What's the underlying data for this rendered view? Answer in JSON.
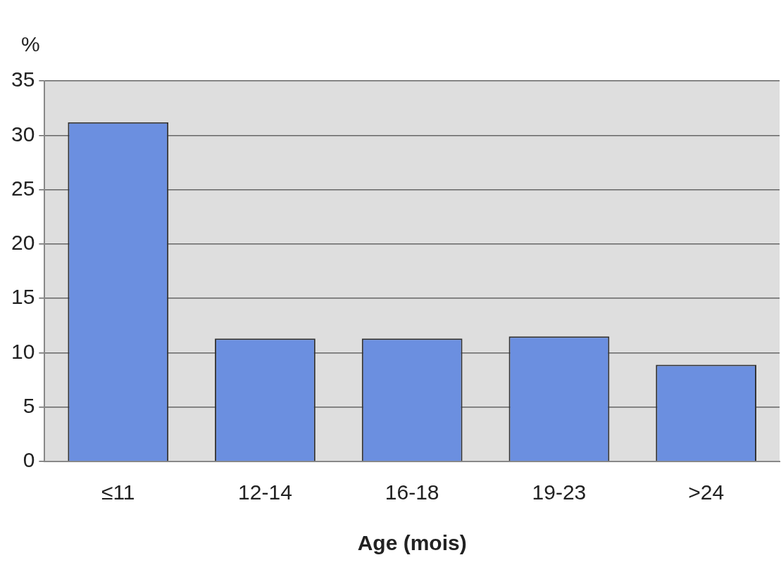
{
  "chart_data": {
    "type": "bar",
    "ylabel": "%",
    "xlabel": "Age (mois)",
    "categories": [
      "≤11",
      "12-14",
      "16-18",
      "19-23",
      ">24"
    ],
    "values": [
      31.2,
      11.3,
      11.3,
      11.5,
      8.9
    ],
    "color": "#6b8fe0",
    "ylim": [
      0,
      35
    ],
    "yticks": [
      0,
      5,
      10,
      15,
      20,
      25,
      30,
      35
    ],
    "grid": "y"
  }
}
